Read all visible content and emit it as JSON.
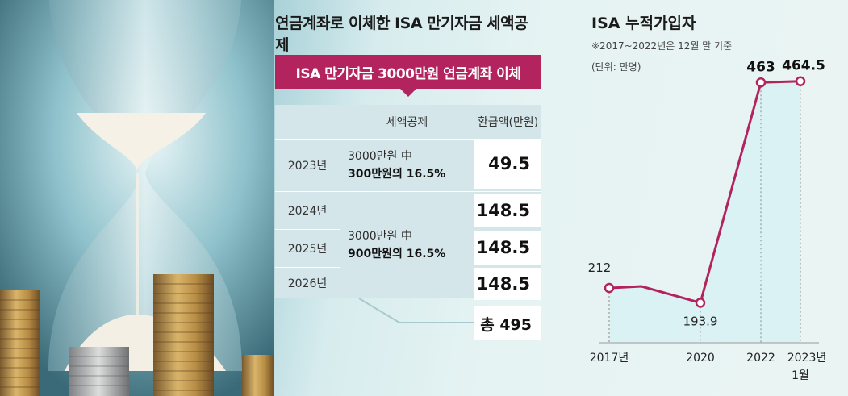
{
  "table": {
    "title": "연금계좌로 이체한 ISA 만기자금 세액공제",
    "banner": "ISA 만기자금 3000만원 연금계좌 이체",
    "headers": {
      "year": "",
      "deduction": "세액공제",
      "refund": "환급액(만원)"
    },
    "rows": [
      {
        "year": "2023년",
        "desc_line1": "3000만원 中",
        "desc_line2": "300만원의 16.5%",
        "refund": "49.5"
      },
      {
        "year": "2024년",
        "refund": "148.5"
      },
      {
        "year": "2025년",
        "refund": "148.5"
      },
      {
        "year": "2026년",
        "refund": "148.5"
      }
    ],
    "group_desc_line1": "3000만원 中",
    "group_desc_line2": "900만원의 16.5%",
    "total": "총 495"
  },
  "chart": {
    "title": "ISA 누적가입자",
    "note": "※2017~2022년은 12월 말 기준",
    "unit": "(단위: 만명)"
  },
  "chart_data": {
    "type": "line",
    "title": "ISA 누적가입자",
    "ylabel": "",
    "unit": "만명",
    "x": [
      "2017년",
      "",
      "2020",
      "2022",
      "2023년 1월"
    ],
    "series": [
      {
        "values": [
          212,
          214,
          193.9,
          463,
          464.5
        ]
      }
    ],
    "labels": [
      "212",
      "",
      "193.9",
      "463",
      "464.5"
    ],
    "x_tick_labels": [
      "2017년",
      "2020",
      "2022",
      "2023년",
      "1월"
    ],
    "ylim": [
      150,
      480
    ],
    "colors": {
      "line": "#b3245e",
      "fill": "#d8f1f3"
    }
  }
}
